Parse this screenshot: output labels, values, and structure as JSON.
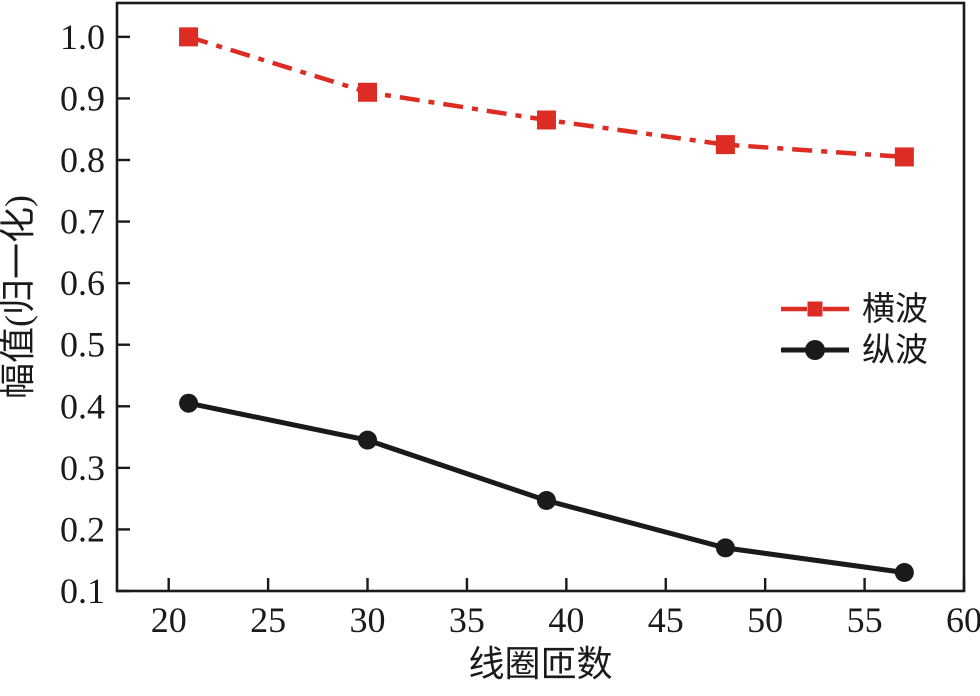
{
  "figure": {
    "background": "#ffffff"
  },
  "chart_data": {
    "type": "line",
    "title": "",
    "xlabel": "线圈匝数",
    "ylabel": "幅值(归一化)",
    "xlim": [
      17.4,
      60
    ],
    "ylim": [
      0.1,
      1.055
    ],
    "xticks": [
      20,
      25,
      30,
      35,
      40,
      45,
      50,
      55,
      60
    ],
    "yticks": [
      0.1,
      0.2,
      0.3,
      0.4,
      0.5,
      0.6,
      0.7,
      0.8,
      0.9,
      1.0
    ],
    "grid": false,
    "legend_position": "right-center",
    "x": [
      21,
      30,
      39,
      48,
      57
    ],
    "series": [
      {
        "name": "横波",
        "values": [
          1.0,
          0.91,
          0.865,
          0.825,
          0.805
        ],
        "color": "#dd2c23",
        "marker": "square",
        "line_style": "dash-dot"
      },
      {
        "name": "纵波",
        "values": [
          0.405,
          0.345,
          0.247,
          0.17,
          0.13
        ],
        "color": "#1a1a1a",
        "marker": "circle",
        "line_style": "solid"
      }
    ],
    "axis_color": "#1a1a1a"
  }
}
